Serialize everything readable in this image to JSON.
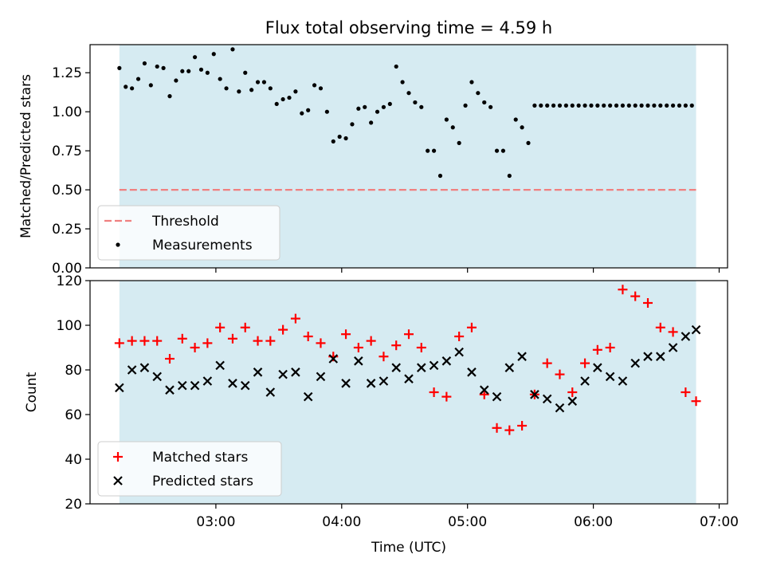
{
  "title": "Flux total observing time = 4.59 h",
  "colors": {
    "shade": "#add8e6",
    "threshold": "#f08080",
    "measurement": "#000000",
    "matched": "#ff0000",
    "predicted": "#000000"
  },
  "chart_data": [
    {
      "type": "scatter",
      "ylabel": "Matched/Predicted stars",
      "ylim": [
        0,
        1.43
      ],
      "yticks": [
        0.0,
        0.25,
        0.5,
        0.75,
        1.0,
        1.25
      ],
      "ytick_labels": [
        "0.00",
        "0.25",
        "0.50",
        "0.75",
        "1.00",
        "1.25"
      ],
      "xlim": [
        "02:00",
        "07:04"
      ],
      "observing_window": [
        "02:14",
        "06:49"
      ],
      "threshold": 0.5,
      "legend": {
        "position": "lower-left",
        "entries": [
          "Threshold",
          "Measurements"
        ]
      },
      "series": [
        {
          "name": "Measurements",
          "x": [
            "02:14",
            "02:17",
            "02:20",
            "02:23",
            "02:26",
            "02:29",
            "02:32",
            "02:35",
            "02:38",
            "02:41",
            "02:44",
            "02:47",
            "02:50",
            "02:53",
            "02:56",
            "02:59",
            "03:02",
            "03:05",
            "03:08",
            "03:11",
            "03:14",
            "03:17",
            "03:20",
            "03:23",
            "03:26",
            "03:29",
            "03:32",
            "03:35",
            "03:38",
            "03:41",
            "03:44",
            "03:47",
            "03:50",
            "03:53",
            "03:56",
            "03:59",
            "04:02",
            "04:05",
            "04:08",
            "04:11",
            "04:14",
            "04:17",
            "04:20",
            "04:23",
            "04:26",
            "04:29",
            "04:32",
            "04:35",
            "04:38",
            "04:41",
            "04:44",
            "04:47",
            "04:50",
            "04:53",
            "04:56",
            "04:59",
            "05:02",
            "05:05",
            "05:08",
            "05:11",
            "05:14",
            "05:17",
            "05:20",
            "05:23",
            "05:26",
            "05:29",
            "05:32",
            "05:35",
            "05:38",
            "05:41",
            "05:44",
            "05:47",
            "05:50",
            "05:53",
            "05:56",
            "05:59",
            "06:02",
            "06:05",
            "06:08",
            "06:11",
            "06:14",
            "06:17",
            "06:20",
            "06:23",
            "06:26",
            "06:29",
            "06:32",
            "06:35",
            "06:38",
            "06:41",
            "06:44",
            "06:47"
          ],
          "y": [
            1.28,
            1.16,
            1.15,
            1.21,
            1.31,
            1.17,
            1.29,
            1.28,
            1.1,
            1.2,
            1.26,
            1.26,
            1.35,
            1.27,
            1.25,
            1.37,
            1.21,
            1.15,
            1.4,
            1.13,
            1.25,
            1.14,
            1.19,
            1.19,
            1.15,
            1.05,
            1.08,
            1.09,
            1.13,
            0.99,
            1.01,
            1.17,
            1.15,
            1.0,
            0.81,
            0.84,
            0.83,
            0.92,
            1.02,
            1.03,
            0.93,
            1.0,
            1.03,
            1.05,
            1.29,
            1.19,
            1.12,
            1.06,
            1.03,
            0.75,
            0.75,
            0.59,
            0.95,
            0.9,
            0.8,
            1.04,
            1.19,
            1.12,
            1.06,
            1.03,
            0.75,
            0.75,
            0.59,
            0.95,
            0.9,
            0.8,
            1.04,
            1.04,
            1.04,
            1.04,
            1.04,
            1.04,
            1.04,
            1.04,
            1.04,
            1.04,
            1.04,
            1.04,
            1.04,
            1.04,
            1.04,
            1.04,
            1.04,
            1.04,
            1.04,
            1.04,
            1.04,
            1.04,
            1.04,
            1.04,
            1.04,
            1.04
          ]
        }
      ]
    },
    {
      "type": "scatter",
      "xlabel": "Time (UTC)",
      "ylabel": "Count",
      "ylim": [
        20,
        120
      ],
      "yticks": [
        20,
        40,
        60,
        80,
        100,
        120
      ],
      "ytick_labels": [
        "20",
        "40",
        "60",
        "80",
        "100",
        "120"
      ],
      "xlim": [
        "02:00",
        "07:04"
      ],
      "xticks": [
        "03:00",
        "04:00",
        "05:00",
        "06:00",
        "07:00"
      ],
      "xtick_labels": [
        "03:00",
        "04:00",
        "05:00",
        "06:00",
        "07:00"
      ],
      "observing_window": [
        "02:14",
        "06:49"
      ],
      "legend": {
        "position": "lower-left",
        "entries": [
          "Matched stars",
          "Predicted stars"
        ]
      },
      "series": [
        {
          "name": "Matched stars",
          "marker": "+",
          "x": [
            "02:14",
            "02:20",
            "02:26",
            "02:32",
            "02:38",
            "02:44",
            "02:50",
            "02:56",
            "03:02",
            "03:08",
            "03:14",
            "03:20",
            "03:26",
            "03:32",
            "03:38",
            "03:44",
            "03:50",
            "03:56",
            "04:02",
            "04:08",
            "04:14",
            "04:20",
            "04:26",
            "04:32",
            "04:38",
            "04:44",
            "04:50",
            "04:56",
            "05:02",
            "05:08",
            "05:14",
            "05:20",
            "05:26",
            "05:32",
            "05:38",
            "05:44",
            "05:50",
            "05:56",
            "06:02",
            "06:08",
            "06:14",
            "06:20",
            "06:26",
            "06:32",
            "06:38",
            "06:44",
            "06:49"
          ],
          "y": [
            92,
            93,
            93,
            93,
            85,
            94,
            90,
            92,
            99,
            94,
            99,
            93,
            93,
            98,
            103,
            95,
            92,
            86,
            96,
            90,
            93,
            86,
            91,
            96,
            90,
            70,
            68,
            95,
            99,
            69,
            54,
            53,
            55,
            69,
            83,
            78,
            70,
            83,
            89,
            90,
            116,
            113,
            110,
            99,
            97,
            70,
            66
          ]
        },
        {
          "name": "Predicted stars",
          "marker": "x",
          "x": [
            "02:14",
            "02:20",
            "02:26",
            "02:32",
            "02:38",
            "02:44",
            "02:50",
            "02:56",
            "03:02",
            "03:08",
            "03:14",
            "03:20",
            "03:26",
            "03:32",
            "03:38",
            "03:44",
            "03:50",
            "03:56",
            "04:02",
            "04:08",
            "04:14",
            "04:20",
            "04:26",
            "04:32",
            "04:38",
            "04:44",
            "04:50",
            "04:56",
            "05:02",
            "05:08",
            "05:14",
            "05:20",
            "05:26",
            "05:32",
            "05:38",
            "05:44",
            "05:50",
            "05:56",
            "06:02",
            "06:08",
            "06:14",
            "06:20",
            "06:26",
            "06:32",
            "06:38",
            "06:44",
            "06:49"
          ],
          "y": [
            72,
            80,
            81,
            77,
            71,
            73,
            73,
            75,
            82,
            74,
            73,
            79,
            70,
            78,
            79,
            68,
            77,
            85,
            74,
            84,
            74,
            75,
            81,
            76,
            81,
            82,
            84,
            88,
            79,
            71,
            68,
            81,
            86,
            69,
            67,
            63,
            66,
            75,
            81,
            77,
            75,
            83,
            86,
            86,
            90,
            95,
            98
          ]
        }
      ]
    }
  ]
}
